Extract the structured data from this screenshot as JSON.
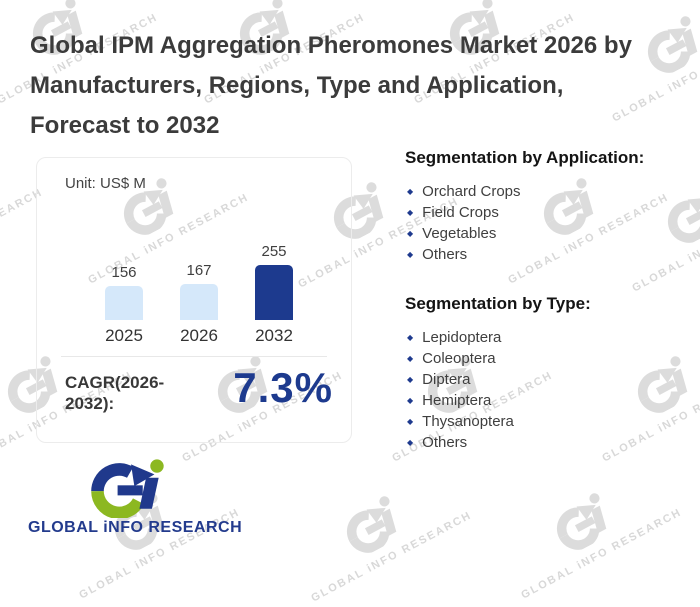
{
  "title": "Global IPM Aggregation Pheromones Market 2026 by Manufacturers, Regions, Type and Application, Forecast to 2032",
  "chart_card": {
    "unit_label": "Unit: US$ M",
    "cagr_label": "CAGR(2026-2032):",
    "cagr_value": "7.3%"
  },
  "chart_data": {
    "type": "bar",
    "categories": [
      "2025",
      "2026",
      "2032"
    ],
    "values": [
      156,
      167,
      255
    ],
    "value_labels": [
      "156",
      "167",
      "255"
    ],
    "title": "",
    "xlabel": "",
    "ylabel": "Unit: US$ M",
    "ylim": [
      0,
      280
    ],
    "grid": false,
    "legend": false,
    "bar_colors": [
      "#d5e8fa",
      "#d5e8fa",
      "#1d3a8e"
    ]
  },
  "segmentation_application": {
    "heading": "Segmentation by Application:",
    "items": [
      "Orchard Crops",
      "Field Crops",
      "Vegetables",
      "Others"
    ]
  },
  "segmentation_type": {
    "heading": "Segmentation by Type:",
    "items": [
      "Lepidoptera",
      "Coleoptera",
      "Diptera",
      "Hemiptera",
      "Thysanoptera",
      "Others"
    ]
  },
  "logo": {
    "text": "GLOBAL iNFO RESEARCH"
  },
  "watermark": {
    "text": "GLOBAL iNFO RESEARCH"
  },
  "colors": {
    "accent_blue": "#1d3a8e",
    "light_bar": "#d5e8fa",
    "logo_green": "#8cb821",
    "title_text": "#3b3b3b"
  }
}
